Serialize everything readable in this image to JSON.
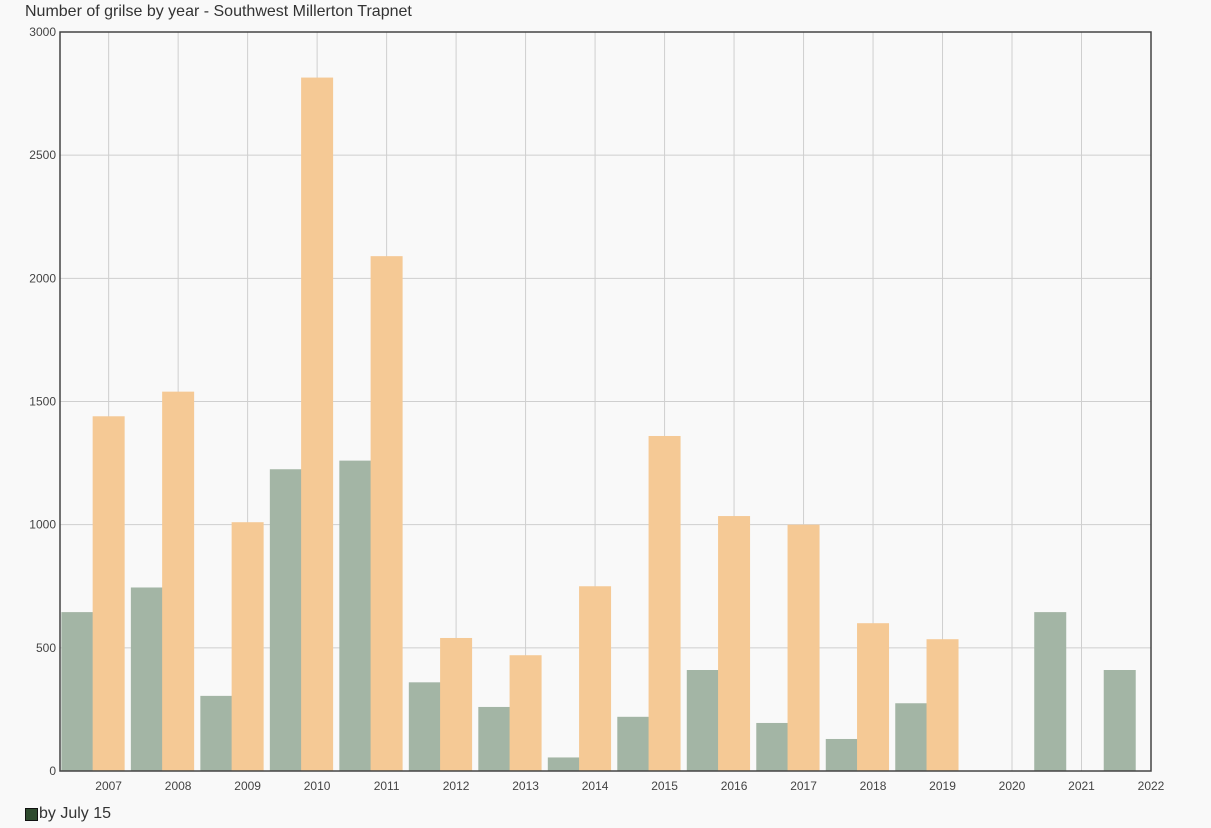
{
  "chart_data": {
    "type": "bar",
    "title": "Number of grilse by year - Southwest Millerton Trapnet",
    "xlabel": "",
    "ylabel": "",
    "ylim": [
      0,
      3000
    ],
    "yticks": [
      0,
      500,
      1000,
      1500,
      2000,
      2500,
      3000
    ],
    "xlim": [
      2006.3,
      2022
    ],
    "xticks": [
      2007,
      2008,
      2009,
      2010,
      2011,
      2012,
      2013,
      2014,
      2015,
      2016,
      2017,
      2018,
      2019,
      2020,
      2021,
      2022
    ],
    "grid": true,
    "legend_position": "bottom-left",
    "series": [
      {
        "name": "by July 15",
        "color": "#a3b5a5",
        "x": [
          2006.55,
          2007.55,
          2008.55,
          2009.55,
          2010.55,
          2011.55,
          2012.55,
          2013.55,
          2014.55,
          2015.55,
          2016.55,
          2017.55,
          2018.55,
          2020.55,
          2021.55
        ],
        "values": [
          645,
          745,
          305,
          1225,
          1260,
          360,
          260,
          55,
          220,
          410,
          195,
          130,
          275,
          645,
          410
        ]
      },
      {
        "name": "",
        "color": "#f5c995",
        "x": [
          2007,
          2008,
          2009,
          2010,
          2011,
          2012,
          2013,
          2014,
          2015,
          2016,
          2017,
          2018,
          2019
        ],
        "values": [
          1440,
          1540,
          1010,
          2815,
          2090,
          540,
          470,
          750,
          1360,
          1035,
          1000,
          600,
          535
        ]
      }
    ]
  }
}
